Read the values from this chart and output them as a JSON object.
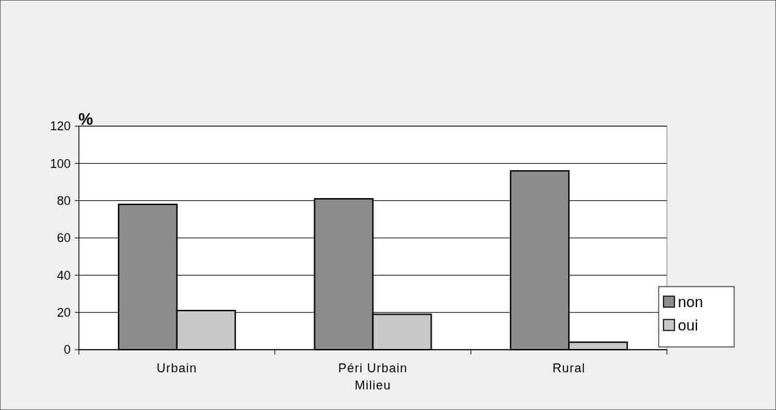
{
  "chart_data": {
    "type": "bar",
    "ylabel": "%",
    "xlabel": "Milieu",
    "categories": [
      "Urbain",
      "Péri Urbain",
      "Rural"
    ],
    "series": [
      {
        "name": "non",
        "color": "#8c8c8c",
        "values": [
          78,
          81,
          96
        ]
      },
      {
        "name": "oui",
        "color": "#c8c8c8",
        "values": [
          21,
          19,
          4
        ]
      }
    ],
    "ylim": [
      0,
      120
    ],
    "yticks": [
      0,
      20,
      40,
      60,
      80,
      100,
      120
    ],
    "grid": "y",
    "legend": "right"
  }
}
